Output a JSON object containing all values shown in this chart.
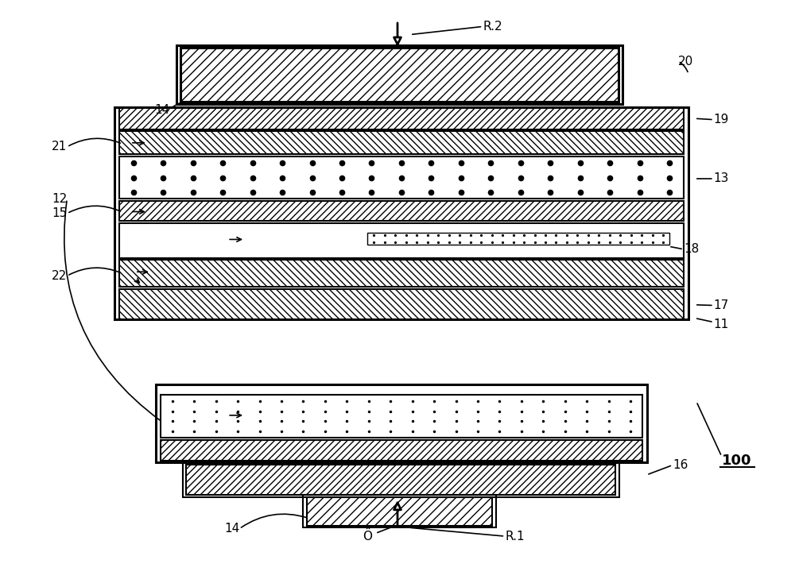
{
  "bg_color": "#ffffff",
  "fig_width": 10.0,
  "fig_height": 7.34,
  "lw": 1.5,
  "lw_thick": 2.2,
  "fontsize_label": 11,
  "fontsize_100": 13
}
